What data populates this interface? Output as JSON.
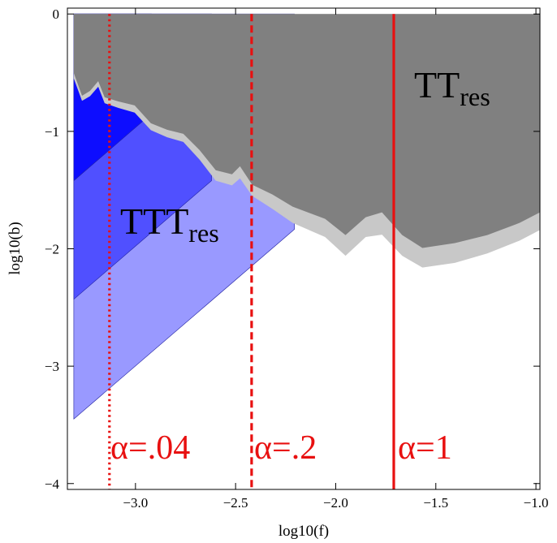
{
  "chart_data": {
    "type": "region",
    "xlabel": "log10(f)",
    "ylabel": "log10(b)",
    "xlim": [
      -3.34,
      -0.98
    ],
    "ylim": [
      -4.05,
      0.05
    ],
    "xticks": [
      {
        "value": -3.0,
        "label": "−3.0"
      },
      {
        "value": -2.5,
        "label": "−2.5"
      },
      {
        "value": -2.0,
        "label": "−2.0"
      },
      {
        "value": -1.5,
        "label": "−1.5"
      },
      {
        "value": -1.0,
        "label": "−1.0"
      }
    ],
    "yticks": [
      0,
      {
        "value": -1,
        "label": "−1"
      },
      {
        "value": -2,
        "label": "−2"
      },
      {
        "value": -3,
        "label": "−3"
      },
      {
        "value": -4,
        "label": "−4"
      }
    ],
    "regions": [
      {
        "color": "#9999ff",
        "x": [
          -3.308,
          -2.206,
          -2.206,
          -3.308
        ],
        "y": [
          -3.45,
          -1.834,
          0,
          0
        ]
      },
      {
        "color": "#5050ff",
        "x": [
          -3.308,
          -2.62,
          -2.62,
          -3.308
        ],
        "y": [
          -2.43,
          -1.42,
          0,
          0
        ]
      },
      {
        "color": "#0d0dff",
        "x": [
          -3.308,
          -2.92,
          -2.92,
          -3.308
        ],
        "y": [
          -1.42,
          -0.85,
          0,
          0
        ]
      },
      {
        "color": "#c8c8c8",
        "x": [
          -3.308,
          -3.308,
          -3.267,
          -3.227,
          -3.186,
          -3.154,
          -3.085,
          -3.004,
          -2.923,
          -2.842,
          -2.761,
          -2.68,
          -2.599,
          -2.518,
          -2.478,
          -2.417,
          -2.316,
          -2.215,
          -2.053,
          -1.951,
          -1.85,
          -1.769,
          -1.668,
          -1.567,
          -1.405,
          -1.243,
          -1.081,
          -0.98,
          -0.98
        ],
        "y": [
          0,
          -0.55,
          -0.74,
          -0.7,
          -0.62,
          -0.76,
          -0.8,
          -0.84,
          -0.99,
          -1.05,
          -1.09,
          -1.24,
          -1.42,
          -1.46,
          -1.4,
          -1.55,
          -1.66,
          -1.78,
          -1.9,
          -2.06,
          -1.9,
          -1.88,
          -2.06,
          -2.16,
          -2.12,
          -2.04,
          -1.93,
          -1.84,
          0
        ]
      },
      {
        "color": "#808080",
        "x": [
          -3.308,
          -3.308,
          -3.267,
          -3.227,
          -3.186,
          -3.154,
          -3.085,
          -3.004,
          -2.923,
          -2.842,
          -2.761,
          -2.68,
          -2.599,
          -2.518,
          -2.478,
          -2.417,
          -2.316,
          -2.215,
          -2.053,
          -1.951,
          -1.85,
          -1.769,
          -1.668,
          -1.567,
          -1.405,
          -1.243,
          -1.081,
          -0.98,
          -0.98
        ],
        "y": [
          0,
          -0.503,
          -0.697,
          -0.655,
          -0.572,
          -0.71,
          -0.745,
          -0.779,
          -0.931,
          -0.986,
          -1.021,
          -1.159,
          -1.331,
          -1.366,
          -1.297,
          -1.455,
          -1.538,
          -1.641,
          -1.745,
          -1.883,
          -1.731,
          -1.69,
          -1.883,
          -1.993,
          -1.952,
          -1.883,
          -1.779,
          -1.69,
          0
        ]
      }
    ],
    "vlines": [
      {
        "x": -3.13,
        "style": "dotted",
        "color": "#e81010"
      },
      {
        "x": -2.42,
        "style": "dashed",
        "color": "#e81010"
      },
      {
        "x": -1.71,
        "style": "solid",
        "color": "#e81010"
      }
    ],
    "annotations": [
      {
        "text": "TT",
        "sub": "res",
        "color": "#000000"
      },
      {
        "text": "TTT",
        "sub": "res",
        "color": "#000000"
      },
      {
        "text": "α=.04",
        "color": "#e81010"
      },
      {
        "text": "α=.2",
        "color": "#e81010"
      },
      {
        "text": "α=1",
        "color": "#e81010"
      }
    ]
  }
}
